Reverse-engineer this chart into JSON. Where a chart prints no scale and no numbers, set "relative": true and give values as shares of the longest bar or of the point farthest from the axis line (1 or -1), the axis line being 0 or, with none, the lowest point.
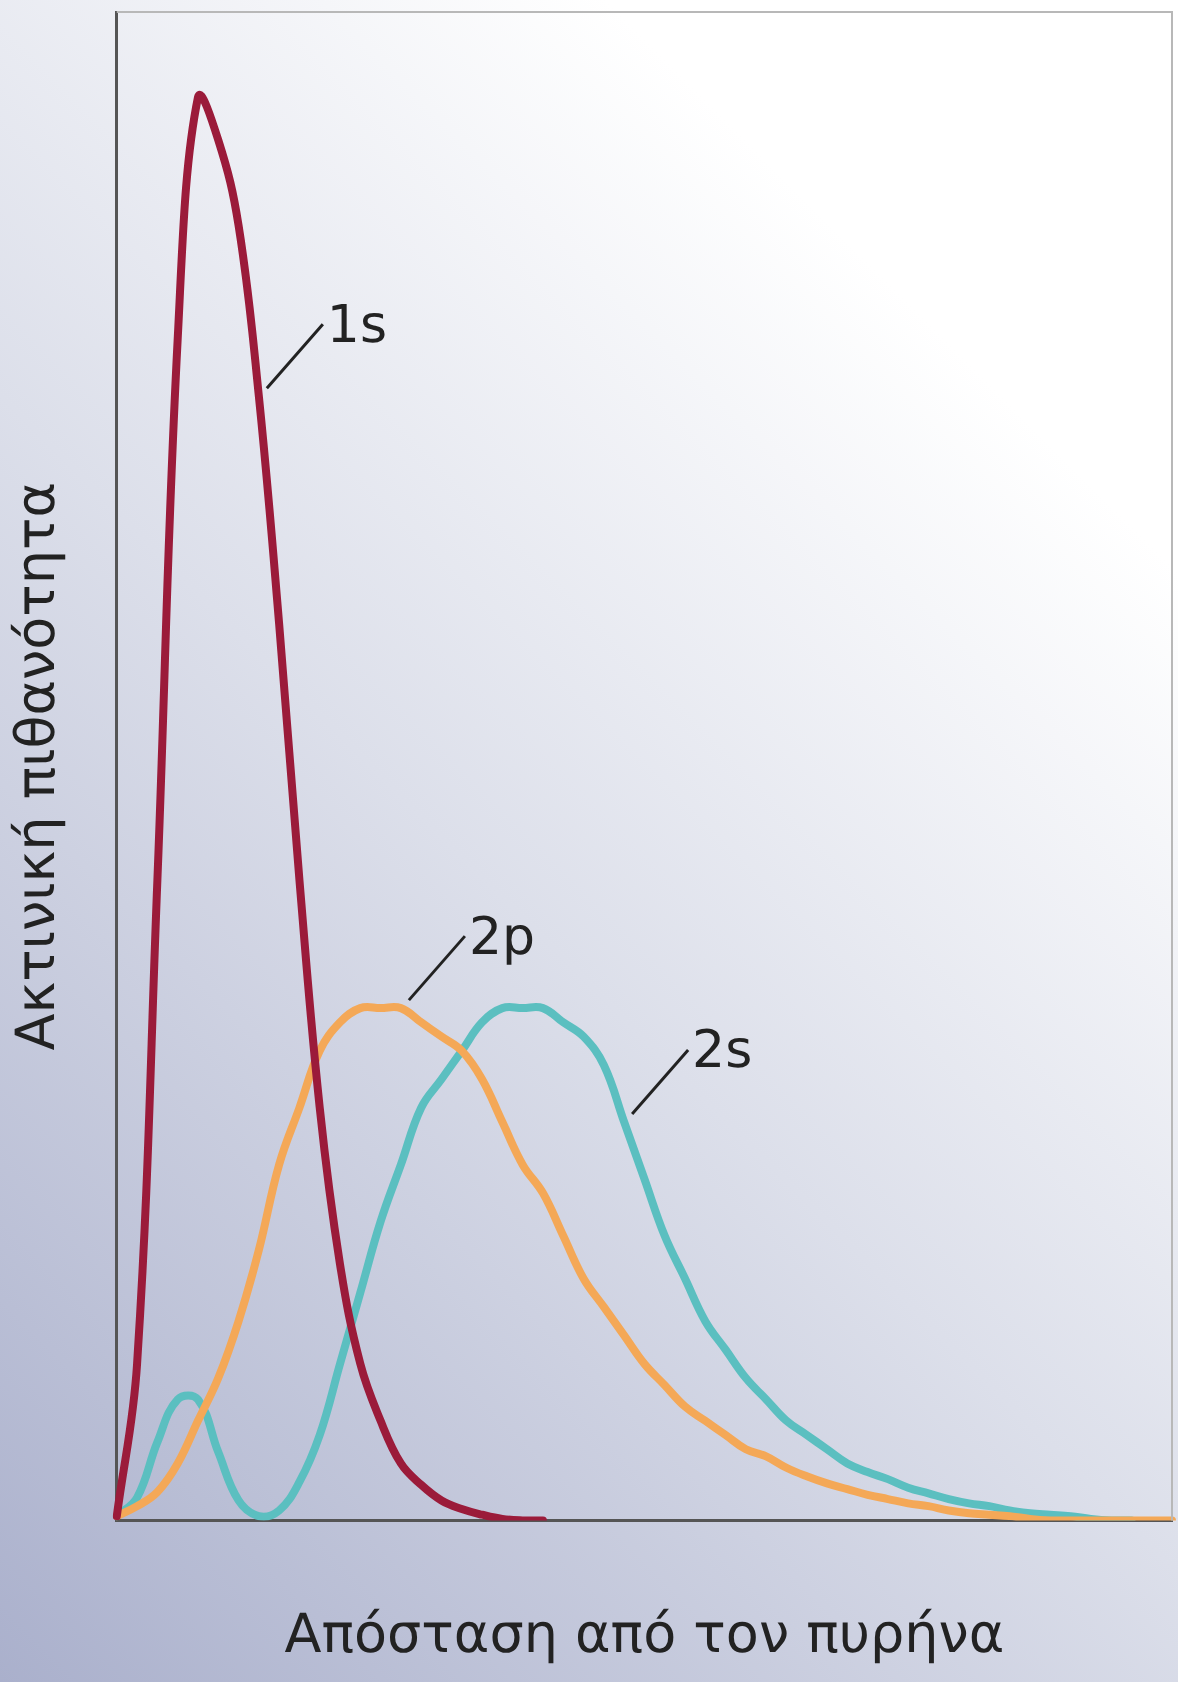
{
  "chart_data": {
    "type": "line",
    "relative": true,
    "xlabel": "Απόσταση από τον πυρήνα",
    "ylabel": "Ακτινική πιθανότητα",
    "grid": false,
    "legend": false,
    "categories": [
      null,
      null,
      null,
      null,
      null,
      null,
      null,
      null,
      null,
      null,
      null,
      null,
      null,
      null,
      null,
      null,
      null,
      null,
      null,
      null,
      null,
      null,
      null,
      null,
      null,
      null,
      null,
      null,
      null,
      null,
      null,
      null,
      null,
      null,
      null,
      null,
      null,
      null,
      null,
      null,
      null,
      null,
      null,
      null,
      null,
      null,
      null,
      null,
      null,
      null,
      null,
      null,
      null
    ],
    "series": [
      {
        "name": "1s",
        "color": "#9b1b3a",
        "values": [
          0.003,
          0.11,
          0.45,
          0.83,
          1,
          0.97,
          0.91,
          0.79,
          0.63,
          0.45,
          0.29,
          0.18,
          0.11,
          0.07,
          0.04,
          0.025,
          0.014,
          0.008,
          0.004,
          0.001,
          0,
          0,
          null,
          null,
          null,
          null,
          null,
          null,
          null,
          null,
          null,
          null,
          null,
          null,
          null,
          null,
          null,
          null,
          null,
          null,
          null,
          null,
          null,
          null,
          null,
          null,
          null,
          null,
          null,
          null,
          null,
          null,
          null
        ]
      },
      {
        "name": "2p",
        "color": "#f4a857",
        "values": [
          0.003,
          0.01,
          0.02,
          0.04,
          0.07,
          0.1,
          0.14,
          0.19,
          0.25,
          0.29,
          0.33,
          0.35,
          0.36,
          0.36,
          0.36,
          0.35,
          0.34,
          0.33,
          0.31,
          0.28,
          0.25,
          0.23,
          0.2,
          0.17,
          0.15,
          0.13,
          0.11,
          0.095,
          0.08,
          0.07,
          0.06,
          0.05,
          0.045,
          0.037,
          0.031,
          0.026,
          0.022,
          0.018,
          0.015,
          0.012,
          0.01,
          0.007,
          0.005,
          0.004,
          0.003,
          0.001,
          0,
          0,
          0,
          0,
          0,
          0,
          0
        ]
      },
      {
        "name": "2s",
        "color": "#5bbfc0",
        "values": [
          0.003,
          0.016,
          0.055,
          0.085,
          0.085,
          0.048,
          0.014,
          0.003,
          0.007,
          0.027,
          0.06,
          0.11,
          0.16,
          0.21,
          0.25,
          0.29,
          0.31,
          0.33,
          0.35,
          0.36,
          0.36,
          0.36,
          0.35,
          0.34,
          0.32,
          0.28,
          0.24,
          0.2,
          0.17,
          0.14,
          0.12,
          0.1,
          0.085,
          0.07,
          0.06,
          0.05,
          0.04,
          0.034,
          0.029,
          0.023,
          0.019,
          0.015,
          0.012,
          0.01,
          0.007,
          0.005,
          0.004,
          0.003,
          0.001,
          0,
          0,
          null,
          null
        ]
      }
    ]
  }
}
